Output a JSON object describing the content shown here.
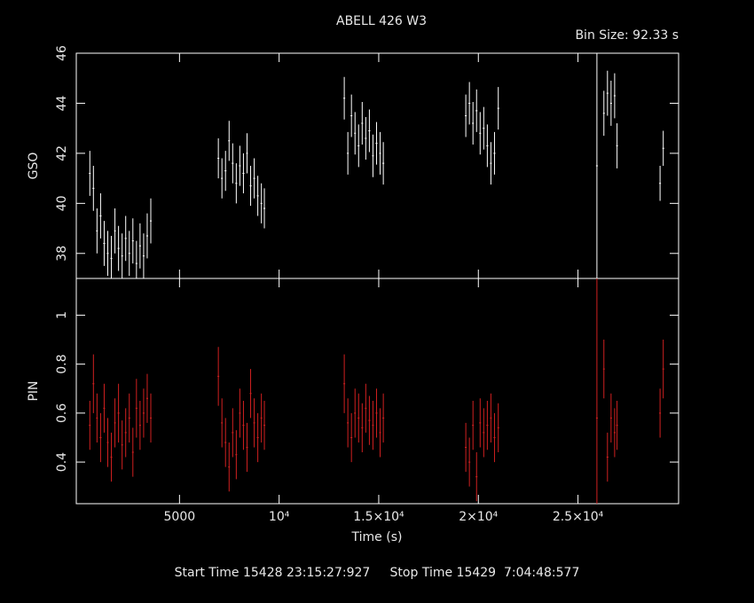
{
  "chart_data": [
    {
      "type": "errorbar",
      "title": "ABELL 426 W3",
      "annotation": "Bin Size: 92.33 s",
      "ylabel": "GSO",
      "color": "#ffffff",
      "show_xtick_labels": false,
      "xlim": [
        -180,
        30050
      ],
      "xticks": [
        5000,
        10000,
        15000,
        20000,
        25000
      ],
      "ylim": [
        37.0,
        46.0
      ],
      "yticks": [
        38,
        40,
        42,
        44,
        46
      ],
      "x": [
        500,
        680,
        860,
        1040,
        1220,
        1400,
        1580,
        1760,
        1940,
        2120,
        2300,
        2480,
        2660,
        2840,
        3020,
        3200,
        3380,
        3560,
        6950,
        7130,
        7310,
        7490,
        7670,
        7850,
        8030,
        8210,
        8390,
        8570,
        8750,
        8930,
        9110,
        9260,
        13270,
        13450,
        13630,
        13810,
        13990,
        14170,
        14350,
        14530,
        14710,
        14890,
        15070,
        15230,
        19370,
        19550,
        19730,
        19910,
        20090,
        20270,
        20450,
        20630,
        20810,
        21000,
        25950,
        26300,
        26480,
        26660,
        26840,
        26960,
        29120,
        29280
      ],
      "values": [
        41.2,
        40.6,
        38.9,
        39.5,
        38.4,
        38.0,
        37.8,
        38.9,
        38.2,
        37.9,
        38.6,
        38.0,
        38.5,
        37.6,
        38.3,
        37.9,
        38.7,
        39.3,
        41.8,
        41.0,
        41.3,
        42.5,
        41.6,
        40.8,
        41.5,
        41.2,
        42.0,
        40.7,
        41.0,
        40.3,
        40.0,
        39.8,
        44.2,
        42.0,
        43.5,
        42.8,
        42.3,
        43.2,
        42.6,
        42.9,
        41.9,
        42.4,
        42.0,
        41.6,
        43.5,
        44.0,
        43.2,
        43.7,
        42.8,
        43.0,
        42.3,
        41.6,
        42.0,
        43.8,
        41.5,
        43.6,
        44.4,
        44.0,
        44.3,
        42.3,
        40.8,
        42.2
      ],
      "errors": [
        0.9,
        0.9,
        0.9,
        0.9,
        0.9,
        0.9,
        0.9,
        0.9,
        0.9,
        0.9,
        0.9,
        0.9,
        0.9,
        0.9,
        0.9,
        0.9,
        0.9,
        0.9,
        0.8,
        0.8,
        0.8,
        0.8,
        0.8,
        0.8,
        0.8,
        0.8,
        0.8,
        0.8,
        0.8,
        0.8,
        0.8,
        0.8,
        0.85,
        0.85,
        0.85,
        0.85,
        0.85,
        0.85,
        0.85,
        0.85,
        0.85,
        0.85,
        0.85,
        0.85,
        0.85,
        0.85,
        0.85,
        0.85,
        0.85,
        0.85,
        0.85,
        0.85,
        0.85,
        0.85,
        5.0,
        0.9,
        0.9,
        0.9,
        0.9,
        0.9,
        0.7,
        0.7
      ]
    },
    {
      "type": "errorbar",
      "ylabel": "PIN",
      "xlabel": "Time (s)",
      "footer": "Start Time 15428 23:15:27:927     Stop Time 15429  7:04:48:577",
      "color": "#d02020",
      "show_xtick_labels": true,
      "xlim": [
        -180,
        30050
      ],
      "xticks": [
        5000,
        {
          "value": 10000,
          "label": "10⁴"
        },
        {
          "value": 15000,
          "label": "1.5×10⁴"
        },
        {
          "value": 20000,
          "label": "2×10⁴"
        },
        {
          "value": 25000,
          "label": "2.5×10⁴"
        }
      ],
      "ylim": [
        0.23,
        1.15
      ],
      "yticks": [
        0.4,
        0.6,
        0.8,
        1
      ],
      "x": [
        500,
        680,
        860,
        1040,
        1220,
        1400,
        1580,
        1760,
        1940,
        2120,
        2300,
        2480,
        2660,
        2840,
        3020,
        3200,
        3380,
        3560,
        6950,
        7130,
        7310,
        7490,
        7670,
        7850,
        8030,
        8210,
        8390,
        8570,
        8750,
        8930,
        9110,
        9260,
        13270,
        13450,
        13630,
        13810,
        13990,
        14170,
        14350,
        14530,
        14710,
        14890,
        15070,
        15230,
        19370,
        19550,
        19730,
        19910,
        20090,
        20270,
        20450,
        20630,
        20810,
        21000,
        25950,
        26300,
        26480,
        26660,
        26840,
        26960,
        29120,
        29280
      ],
      "values": [
        0.55,
        0.72,
        0.58,
        0.5,
        0.62,
        0.48,
        0.42,
        0.56,
        0.6,
        0.47,
        0.52,
        0.58,
        0.44,
        0.62,
        0.55,
        0.6,
        0.66,
        0.58,
        0.75,
        0.56,
        0.48,
        0.38,
        0.52,
        0.43,
        0.6,
        0.55,
        0.46,
        0.68,
        0.56,
        0.5,
        0.58,
        0.55,
        0.72,
        0.56,
        0.5,
        0.6,
        0.58,
        0.54,
        0.62,
        0.57,
        0.55,
        0.6,
        0.52,
        0.58,
        0.46,
        0.4,
        0.55,
        0.34,
        0.56,
        0.52,
        0.55,
        0.58,
        0.5,
        0.54,
        0.58,
        0.78,
        0.42,
        0.58,
        0.52,
        0.55,
        0.6,
        0.78
      ],
      "errors": [
        0.1,
        0.12,
        0.1,
        0.1,
        0.1,
        0.1,
        0.1,
        0.1,
        0.12,
        0.1,
        0.1,
        0.1,
        0.1,
        0.12,
        0.1,
        0.1,
        0.1,
        0.1,
        0.12,
        0.1,
        0.1,
        0.1,
        0.1,
        0.1,
        0.1,
        0.1,
        0.1,
        0.1,
        0.1,
        0.1,
        0.1,
        0.1,
        0.12,
        0.1,
        0.1,
        0.1,
        0.1,
        0.1,
        0.1,
        0.1,
        0.1,
        0.1,
        0.1,
        0.1,
        0.1,
        0.1,
        0.1,
        0.1,
        0.1,
        0.1,
        0.1,
        0.1,
        0.1,
        0.1,
        0.6,
        0.12,
        0.1,
        0.1,
        0.1,
        0.1,
        0.1,
        0.12
      ]
    }
  ]
}
